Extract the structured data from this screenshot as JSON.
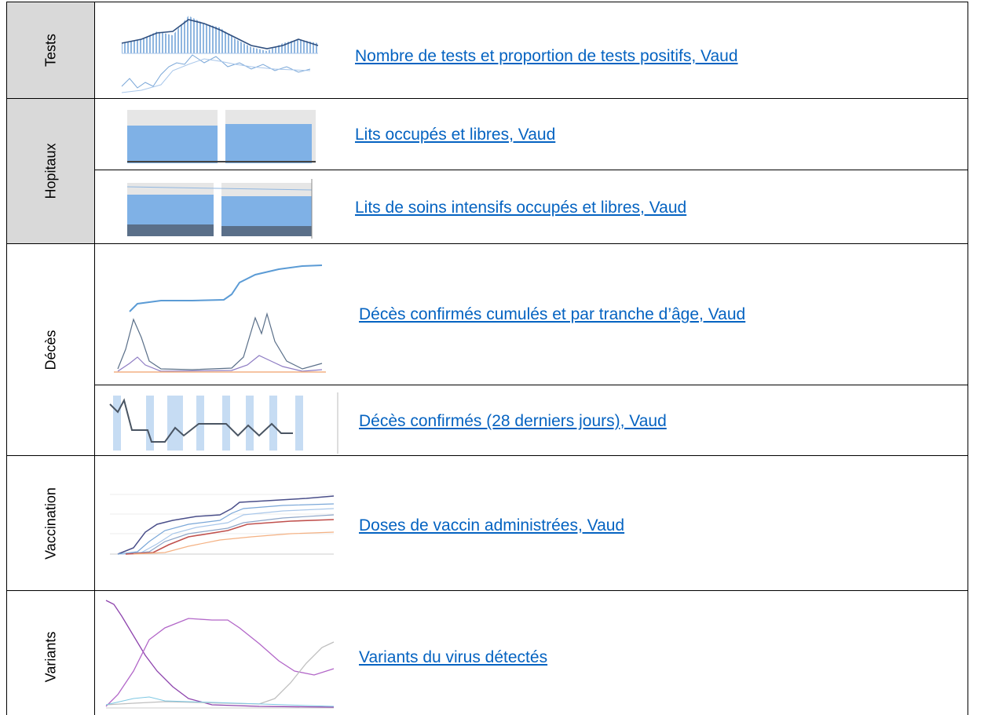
{
  "rows": [
    {
      "category": "Tests",
      "items": [
        {
          "link": "Nombre de tests et proportion de tests positifs, Vaud"
        }
      ]
    },
    {
      "category": "Hopitaux",
      "items": [
        {
          "link": "Lits occupés et libres, Vaud"
        },
        {
          "link": "Lits de soins intensifs occupés et libres, Vaud"
        }
      ]
    },
    {
      "category": "Décès",
      "items": [
        {
          "link": "Décès confirmés cumulés et par tranche d’âge, Vaud"
        },
        {
          "link": "Décès confirmés (28 derniers jours), Vaud"
        }
      ]
    },
    {
      "category": "Vaccination",
      "items": [
        {
          "link": "Doses de vaccin administrées, Vaud"
        }
      ]
    },
    {
      "category": "Variants",
      "items": [
        {
          "link": "Variants du virus détectés"
        }
      ]
    }
  ]
}
